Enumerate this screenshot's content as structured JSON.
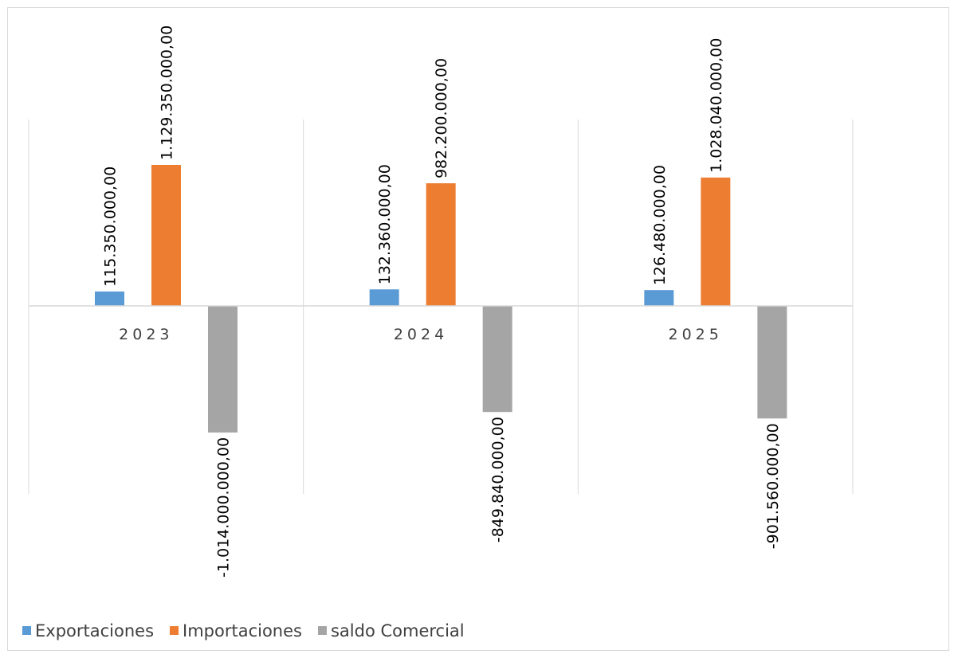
{
  "chart_data": {
    "type": "bar",
    "title": "",
    "xlabel": "",
    "ylabel": "",
    "categories": [
      "2023",
      "2024",
      "2025"
    ],
    "series": [
      {
        "name": "Exportaciones",
        "color": "#5B9BD5",
        "values": [
          115350000,
          132360000,
          126480000
        ],
        "labels": [
          "115.350.000,00",
          "132.360.000,00",
          "126.480.000,00"
        ]
      },
      {
        "name": "Importaciones",
        "color": "#ED7D31",
        "values": [
          1129350000,
          982200000,
          1028040000
        ],
        "labels": [
          "1.129.350.000,00",
          "982.200.000,00",
          "1.028.040.000,00"
        ]
      },
      {
        "name": "saldo Comercial",
        "color": "#A5A5A5",
        "values": [
          -1014000000,
          -849840000,
          -901560000
        ],
        "labels": [
          "-1.014.000.000,00",
          "-849.840.000,00",
          "-901.560.000,00"
        ]
      }
    ],
    "legend_position": "bottom-left",
    "grid": "vertical category separators",
    "axis_color": "#d9d9d9"
  }
}
